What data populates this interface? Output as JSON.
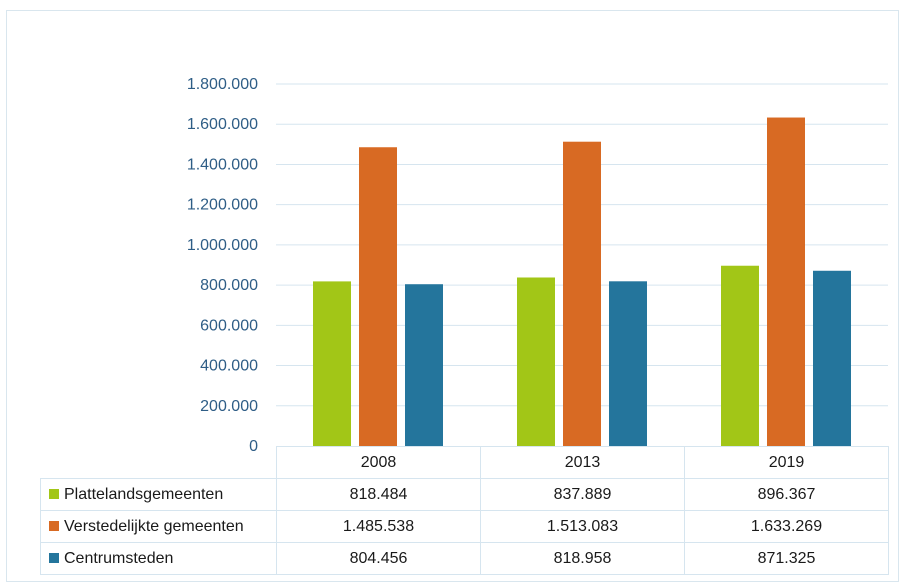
{
  "chart_data": {
    "type": "bar",
    "title": "",
    "xlabel": "",
    "ylabel": "",
    "categories": [
      "2008",
      "2013",
      "2019"
    ],
    "ylim": [
      0,
      1800000
    ],
    "yticks": [
      "0",
      "200.000",
      "400.000",
      "600.000",
      "800.000",
      "1.000.000",
      "1.200.000",
      "1.400.000",
      "1.600.000",
      "1.800.000"
    ],
    "grid": true,
    "legend": "data-table",
    "series": [
      {
        "name": "Plattelandsgemeenten",
        "color": "#a2c617",
        "values": [
          818484,
          837889,
          896367
        ],
        "labels": [
          "818.484",
          "837.889",
          "896.367"
        ]
      },
      {
        "name": "Verstedelijkte gemeenten",
        "color": "#d86a23",
        "values": [
          1485538,
          1513083,
          1633269
        ],
        "labels": [
          "1.485.538",
          "1.513.083",
          "1.633.269"
        ]
      },
      {
        "name": "Centrumsteden",
        "color": "#24759c",
        "values": [
          804456,
          818958,
          871325
        ],
        "labels": [
          "804.456",
          "818.958",
          "871.325"
        ]
      }
    ]
  }
}
